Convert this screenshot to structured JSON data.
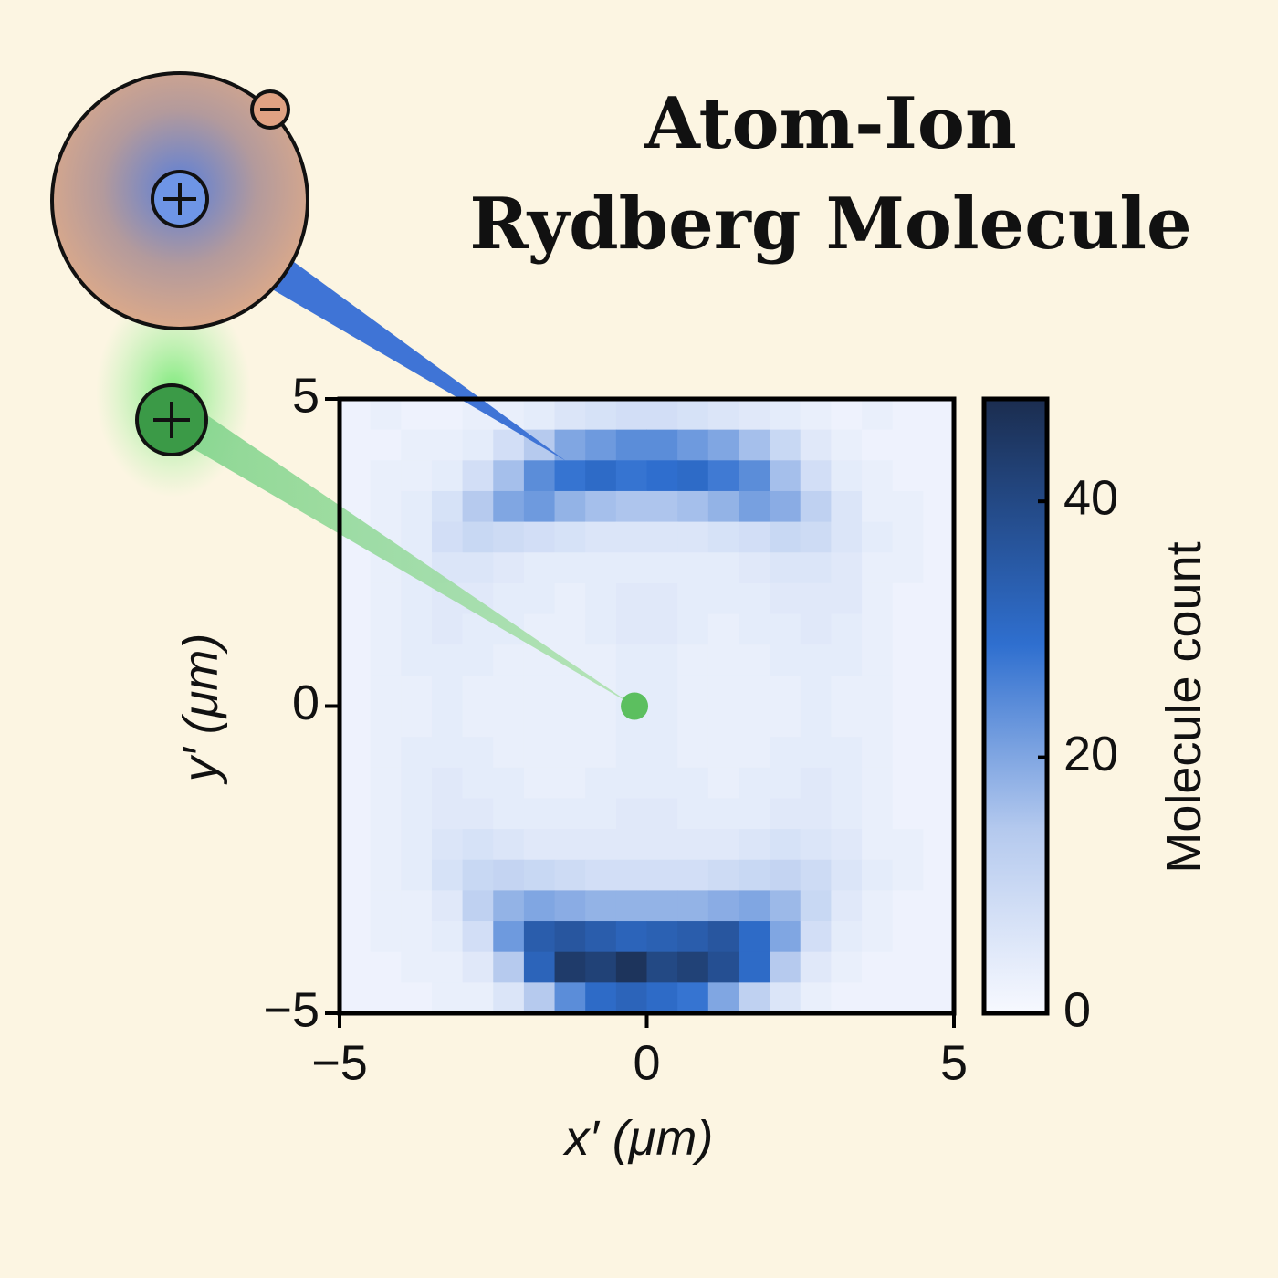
{
  "chart_data": {
    "type": "heatmap",
    "title": [
      "Atom-Ion",
      "Rydberg Molecule"
    ],
    "xlabel": "x′ (μm)",
    "ylabel": "y′ (μm)",
    "colorbar_label": "Molecule count",
    "xlim": [
      -5,
      5
    ],
    "ylim": [
      -5,
      5
    ],
    "clim": [
      0,
      48
    ],
    "xticks": [
      {
        "value": -5,
        "label": "−5"
      },
      0,
      5
    ],
    "yticks": [
      {
        "value": -5,
        "label": "−5"
      },
      0,
      5
    ],
    "cticks": [
      0,
      20,
      40
    ],
    "x_bins": [
      -5,
      -4.5,
      -4,
      -3.5,
      -3,
      -2.5,
      -2,
      -1.5,
      -1,
      -0.5,
      0,
      0.5,
      1,
      1.5,
      2,
      2.5,
      3,
      3.5,
      4,
      4.5,
      5
    ],
    "y_bins": [
      5,
      4.5,
      4,
      3.5,
      3,
      2.5,
      2,
      1.5,
      1,
      0.5,
      0,
      -0.5,
      -1,
      -1.5,
      -2,
      -2.5,
      -3,
      -3.5,
      -4,
      -4.5,
      -5
    ],
    "values": [
      [
        2,
        3,
        2,
        2,
        3,
        3,
        4,
        6,
        7,
        8,
        8,
        7,
        6,
        5,
        4,
        3,
        2,
        3,
        2,
        2
      ],
      [
        2,
        2,
        3,
        3,
        4,
        8,
        14,
        20,
        22,
        24,
        24,
        22,
        20,
        16,
        10,
        5,
        3,
        2,
        2,
        2
      ],
      [
        2,
        3,
        3,
        4,
        8,
        16,
        24,
        28,
        30,
        28,
        29,
        30,
        27,
        24,
        16,
        8,
        4,
        3,
        2,
        2
      ],
      [
        2,
        3,
        4,
        7,
        14,
        20,
        22,
        18,
        16,
        15,
        15,
        16,
        18,
        21,
        19,
        12,
        6,
        3,
        3,
        2
      ],
      [
        2,
        3,
        4,
        8,
        10,
        9,
        8,
        7,
        6,
        6,
        6,
        6,
        7,
        8,
        10,
        9,
        6,
        4,
        3,
        2
      ],
      [
        2,
        3,
        4,
        6,
        6,
        5,
        4,
        4,
        4,
        4,
        4,
        4,
        4,
        5,
        6,
        6,
        5,
        3,
        3,
        2
      ],
      [
        2,
        3,
        4,
        5,
        5,
        4,
        4,
        3,
        4,
        5,
        5,
        4,
        4,
        4,
        5,
        5,
        5,
        3,
        2,
        2
      ],
      [
        2,
        3,
        4,
        5,
        4,
        4,
        3,
        3,
        4,
        5,
        5,
        4,
        3,
        4,
        4,
        5,
        4,
        3,
        2,
        2
      ],
      [
        2,
        3,
        4,
        4,
        4,
        3,
        3,
        3,
        3,
        4,
        4,
        3,
        3,
        3,
        4,
        4,
        4,
        3,
        2,
        2
      ],
      [
        2,
        3,
        3,
        4,
        3,
        3,
        3,
        3,
        3,
        4,
        4,
        3,
        3,
        3,
        3,
        4,
        3,
        3,
        2,
        2
      ],
      [
        2,
        3,
        3,
        4,
        3,
        3,
        3,
        3,
        3,
        4,
        4,
        3,
        3,
        3,
        3,
        4,
        3,
        3,
        2,
        2
      ],
      [
        2,
        3,
        4,
        4,
        4,
        3,
        3,
        3,
        3,
        4,
        4,
        3,
        3,
        3,
        4,
        4,
        4,
        3,
        2,
        2
      ],
      [
        2,
        3,
        4,
        5,
        4,
        4,
        3,
        3,
        4,
        4,
        4,
        4,
        3,
        4,
        4,
        5,
        4,
        3,
        2,
        2
      ],
      [
        2,
        3,
        4,
        5,
        5,
        4,
        4,
        4,
        4,
        5,
        5,
        4,
        4,
        4,
        5,
        5,
        4,
        3,
        2,
        2
      ],
      [
        2,
        3,
        4,
        6,
        7,
        6,
        5,
        5,
        5,
        5,
        5,
        5,
        5,
        6,
        7,
        6,
        5,
        3,
        3,
        2
      ],
      [
        2,
        3,
        4,
        7,
        10,
        11,
        10,
        9,
        8,
        8,
        8,
        8,
        9,
        10,
        11,
        9,
        6,
        4,
        3,
        2
      ],
      [
        2,
        3,
        3,
        5,
        12,
        18,
        20,
        19,
        18,
        18,
        18,
        18,
        19,
        20,
        17,
        10,
        5,
        3,
        2,
        2
      ],
      [
        2,
        3,
        3,
        4,
        8,
        22,
        34,
        36,
        34,
        32,
        33,
        34,
        36,
        30,
        20,
        8,
        4,
        3,
        2,
        2
      ],
      [
        2,
        2,
        3,
        3,
        5,
        14,
        32,
        44,
        42,
        46,
        40,
        42,
        38,
        30,
        14,
        5,
        3,
        2,
        2,
        2
      ],
      [
        2,
        2,
        2,
        3,
        3,
        6,
        14,
        24,
        30,
        32,
        30,
        28,
        20,
        12,
        6,
        3,
        2,
        2,
        2,
        2
      ]
    ],
    "ion": {
      "x": -0.2,
      "y": 0,
      "color": "#5cbf5f"
    }
  }
}
